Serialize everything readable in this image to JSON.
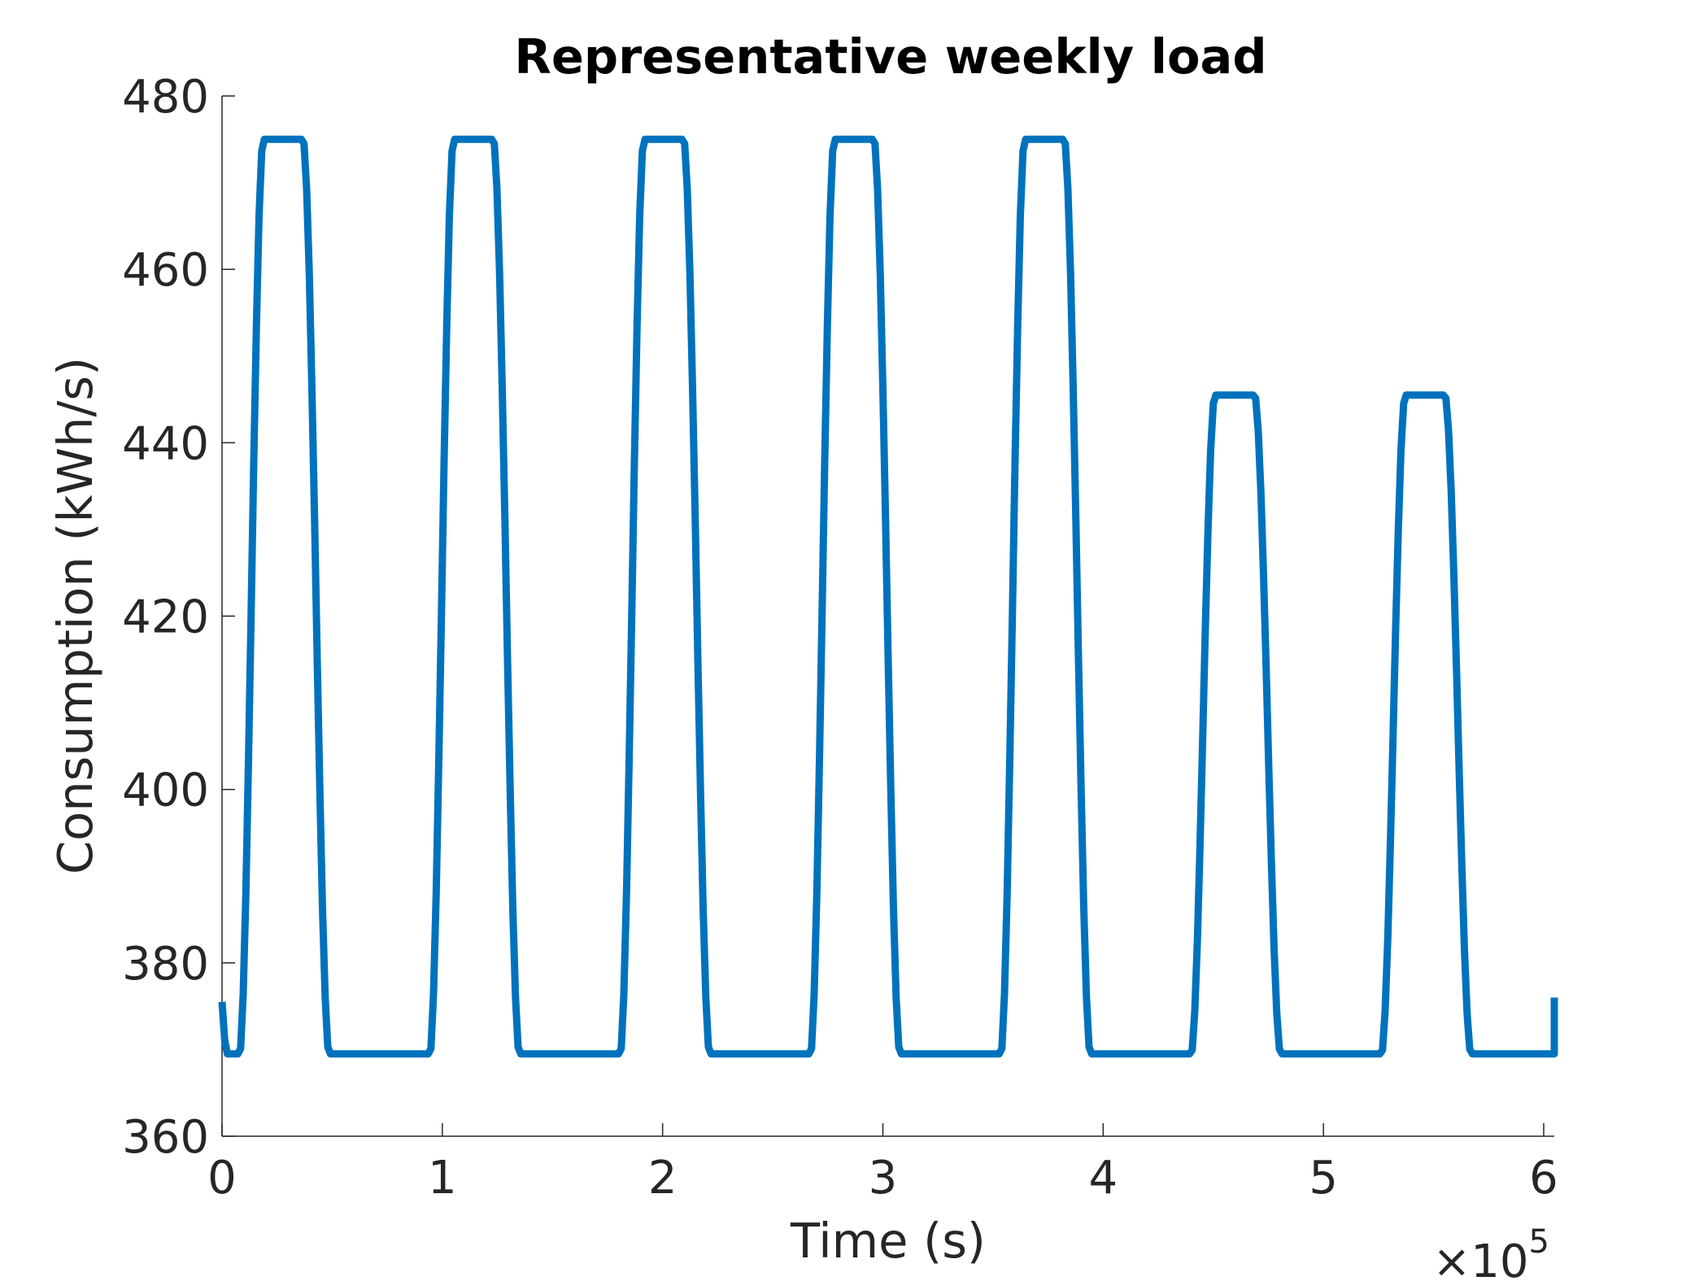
{
  "chart_data": {
    "type": "line",
    "title": "Representative weekly load",
    "xlabel": "Time (s)",
    "ylabel": "Consumption (kWh/s)",
    "xlim": [
      0,
      604800
    ],
    "ylim": [
      360,
      480
    ],
    "x_ticks": [
      0,
      100000,
      200000,
      300000,
      400000,
      500000,
      600000
    ],
    "x_tick_labels": [
      "0",
      "1",
      "2",
      "3",
      "4",
      "5",
      "6"
    ],
    "x_exponent_base": "×10",
    "x_exponent_power": "5",
    "y_ticks": [
      360,
      380,
      400,
      420,
      440,
      460,
      480
    ],
    "y_tick_labels": [
      "360",
      "380",
      "400",
      "420",
      "440",
      "460",
      "480"
    ],
    "grid": false,
    "legend": "none",
    "series_color": "#0072BD",
    "series": [
      {
        "days": [
          {
            "start": 0,
            "base": 369.5,
            "peak": 475.0
          },
          {
            "start": 86400,
            "base": 369.5,
            "peak": 475.0
          },
          {
            "start": 172800,
            "base": 369.5,
            "peak": 475.0
          },
          {
            "start": 259200,
            "base": 369.5,
            "peak": 475.0
          },
          {
            "start": 345600,
            "base": 369.5,
            "peak": 475.0
          },
          {
            "start": 432000,
            "base": 369.5,
            "peak": 445.5
          },
          {
            "start": 518400,
            "base": 369.5,
            "peak": 445.5
          }
        ],
        "start_value": 375.5,
        "end_value": 376.0
      }
    ]
  }
}
